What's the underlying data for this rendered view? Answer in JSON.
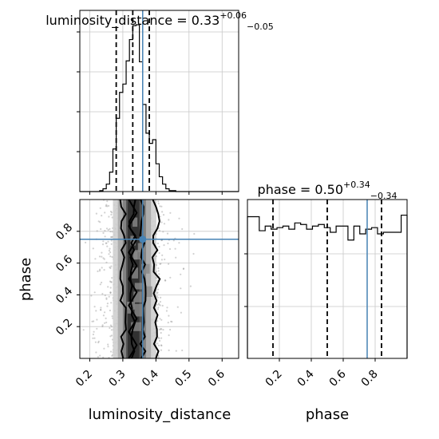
{
  "chart_data": {
    "type": "corner",
    "params": [
      "luminosity_distance",
      "phase"
    ],
    "injection": {
      "luminosity_distance": 0.36,
      "phase": 0.75
    },
    "injection_color": "#4682b4",
    "luminosity_distance": {
      "title_prefix": "luminosity_distance = ",
      "median": "0.33",
      "plus": "+0.06",
      "minus": "−0.05",
      "quantiles": [
        0.28,
        0.33,
        0.38
      ],
      "xlim": [
        0.17,
        0.65
      ],
      "xticks": [
        "0.2",
        "0.3",
        "0.4",
        "0.5",
        "0.6"
      ],
      "xlabel": "luminosity_distance",
      "hist_bins": [
        0.17,
        0.18,
        0.19,
        0.2,
        0.21,
        0.22,
        0.23,
        0.24,
        0.25,
        0.26,
        0.27,
        0.28,
        0.29,
        0.3,
        0.31,
        0.32,
        0.33,
        0.34,
        0.35,
        0.36,
        0.37,
        0.38,
        0.39,
        0.4,
        0.41,
        0.42,
        0.43,
        0.44,
        0.45,
        0.46,
        0.47,
        0.48,
        0.49,
        0.5,
        0.51,
        0.52,
        0.53,
        0.54,
        0.55,
        0.56,
        0.57,
        0.58,
        0.59,
        0.6,
        0.61,
        0.62,
        0.63,
        0.64,
        0.65
      ],
      "hist_values": [
        0,
        0,
        0,
        0,
        0,
        0,
        1,
        3,
        8,
        21,
        46,
        79,
        107,
        116,
        141,
        164,
        179,
        180,
        140,
        94,
        63,
        52,
        56,
        30,
        16,
        8,
        3,
        1,
        1,
        0,
        0,
        0,
        0,
        0,
        0,
        0,
        0,
        0,
        0,
        0,
        0,
        0,
        0,
        0,
        0,
        0,
        0,
        0
      ]
    },
    "phase": {
      "title_prefix": "phase = ",
      "median": "0.50",
      "plus": "+0.34",
      "minus": "−0.34",
      "quantiles": [
        0.16,
        0.5,
        0.84
      ],
      "xlim": [
        0.0,
        1.0
      ],
      "xticks": [
        "0.2",
        "0.4",
        "0.6",
        "0.8"
      ],
      "xlabel": "phase",
      "ylabel": "phase",
      "yticks": [
        "0.2",
        "0.4",
        "0.6",
        "0.8"
      ],
      "hist_values": [
        0.91,
        0.91,
        0.82,
        0.85,
        0.83,
        0.84,
        0.85,
        0.83,
        0.87,
        0.86,
        0.83,
        0.85,
        0.86,
        0.84,
        0.81,
        0.85,
        0.85,
        0.76,
        0.85,
        0.8,
        0.83,
        0.84,
        0.8,
        0.81,
        0.81,
        0.81,
        0.92
      ]
    },
    "joint_contour_columns": [
      {
        "center": 0.3,
        "width": 0.01
      },
      {
        "center": 0.33,
        "width": 0.01
      },
      {
        "center": 0.36,
        "width": 0.01
      },
      {
        "center": 0.4,
        "width": 0.012
      }
    ]
  }
}
